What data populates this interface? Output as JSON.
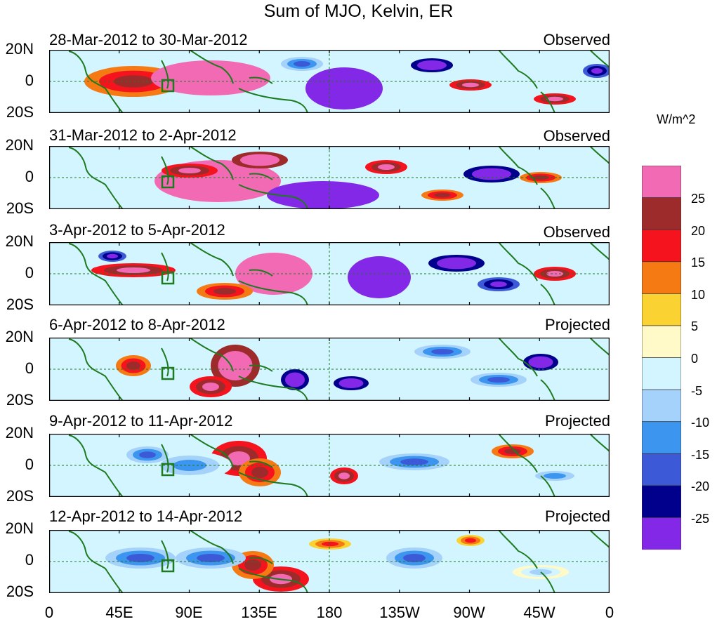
{
  "title": "Sum of MJO, Kelvin, ER",
  "units": "W/m^2",
  "colorbar": {
    "colors": [
      "#f26ab4",
      "#9e2b2b",
      "#f5141e",
      "#f57a14",
      "#fad232",
      "#fffac8",
      "#d2f5ff",
      "#a5d2fa",
      "#3c96f0",
      "#3c5ad7",
      "#00008c",
      "#8228e6"
    ],
    "labels": [
      "25",
      "20",
      "15",
      "10",
      "5",
      "0",
      "-5",
      "-10",
      "-15",
      "-20",
      "-25"
    ]
  },
  "lat_labels": [
    "20N",
    "0",
    "20S"
  ],
  "lon_labels": [
    "0",
    "45E",
    "90E",
    "135E",
    "180",
    "135W",
    "90W",
    "45W",
    "0"
  ],
  "panels": [
    {
      "dates": "28-Mar-2012 to 30-Mar-2012",
      "type": "Observed"
    },
    {
      "dates": "31-Mar-2012 to 2-Apr-2012",
      "type": "Observed"
    },
    {
      "dates": "3-Apr-2012 to 5-Apr-2012",
      "type": "Observed"
    },
    {
      "dates": "6-Apr-2012 to 8-Apr-2012",
      "type": "Projected"
    },
    {
      "dates": "9-Apr-2012 to 11-Apr-2012",
      "type": "Projected"
    },
    {
      "dates": "12-Apr-2012 to 14-Apr-2012",
      "type": "Projected"
    }
  ]
}
